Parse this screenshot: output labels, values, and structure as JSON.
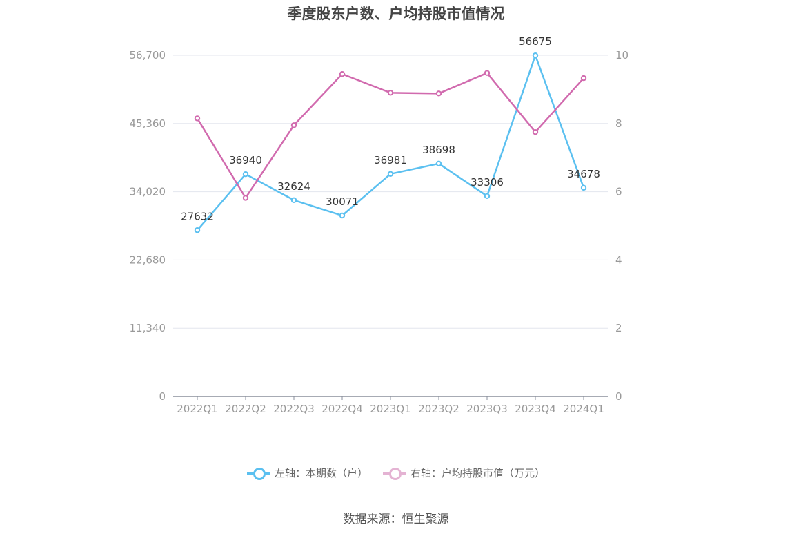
{
  "chart_data": {
    "type": "line",
    "title": "季度股东户数、户均持股市值情况",
    "categories": [
      "2022Q1",
      "2022Q2",
      "2022Q3",
      "2022Q4",
      "2023Q1",
      "2023Q2",
      "2023Q3",
      "2023Q4",
      "2024Q1"
    ],
    "series": [
      {
        "name": "左轴：本期数（户）",
        "axis": "left",
        "color": "#5bc0f0",
        "values": [
          27632,
          36940,
          32624,
          30071,
          36981,
          38698,
          33306,
          56675,
          34678
        ],
        "labels": [
          "27632",
          "36940",
          "32624",
          "30071",
          "36981",
          "38698",
          "33306",
          "56675",
          "34678"
        ]
      },
      {
        "name": "右轴：户均持股市值（万元）",
        "axis": "right",
        "color": "#d16aae",
        "values": [
          8.15,
          5.82,
          7.95,
          9.45,
          8.9,
          8.88,
          9.48,
          7.75,
          9.33
        ]
      }
    ],
    "left_axis": {
      "ylim": [
        0,
        56700
      ],
      "ticks": [
        "0",
        "11,340",
        "22,680",
        "34,020",
        "45,360",
        "56,700"
      ]
    },
    "right_axis": {
      "ylim": [
        0,
        10
      ],
      "ticks": [
        "0",
        "2",
        "4",
        "6",
        "8",
        "10"
      ]
    },
    "grid": true,
    "legend_position": "bottom"
  },
  "legend": {
    "left_label": "左轴：本期数（户）",
    "right_label": "右轴：户均持股市值（万元）"
  },
  "source": "数据来源：恒生聚源",
  "colors": {
    "left_series": "#5bc0f0",
    "right_series": "#d16aae",
    "legend_right_muted": "#e4b3d3"
  }
}
